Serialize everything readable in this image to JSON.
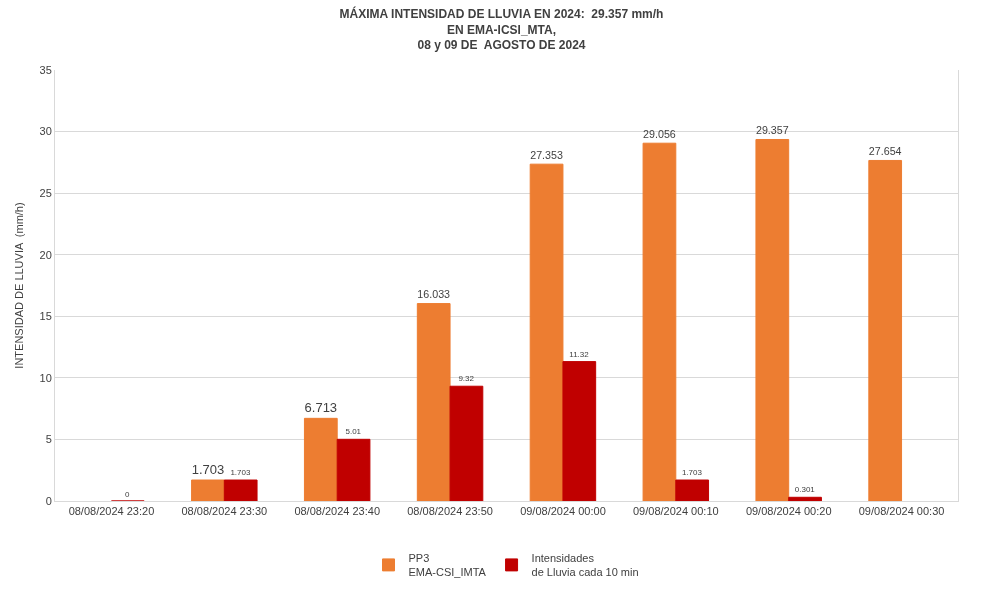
{
  "chart_data": {
    "type": "bar",
    "title": "MÁXIMA INTENSIDAD DE LLUVIA EN 2024:  29.357 mm/h\nEN EMA-ICSI_MTA,\n08 y 09 DE  AGOSTO DE 2024",
    "ylabel": "INTENSIDAD DE LLUVIA  (mm/h)",
    "categories": [
      "08/08/2024 23:20",
      "08/08/2024 23:30",
      "08/08/2024 23:40",
      "08/08/2024 23:50",
      "09/08/2024 00:00",
      "09/08/2024 00:10",
      "09/08/2024 00:20",
      "09/08/2024 00:30"
    ],
    "series": [
      {
        "name": "PP3\nEMA-CSI_IMTA",
        "color": "#ed7d31",
        "values": [
          null,
          1.703,
          6.713,
          16.033,
          27.353,
          29.056,
          29.357,
          27.654
        ]
      },
      {
        "name": "Intensidades\nde Lluvia cada 10 min",
        "color": "#c00000",
        "values": [
          0,
          1.703,
          5.01,
          9.32,
          11.32,
          1.703,
          0.301,
          null
        ]
      }
    ],
    "ylim": [
      0,
      35
    ],
    "yticks": [
      0,
      5,
      10,
      15,
      20,
      25,
      30,
      35
    ],
    "grid": "y",
    "legend": "bottom",
    "data_labels": true
  }
}
